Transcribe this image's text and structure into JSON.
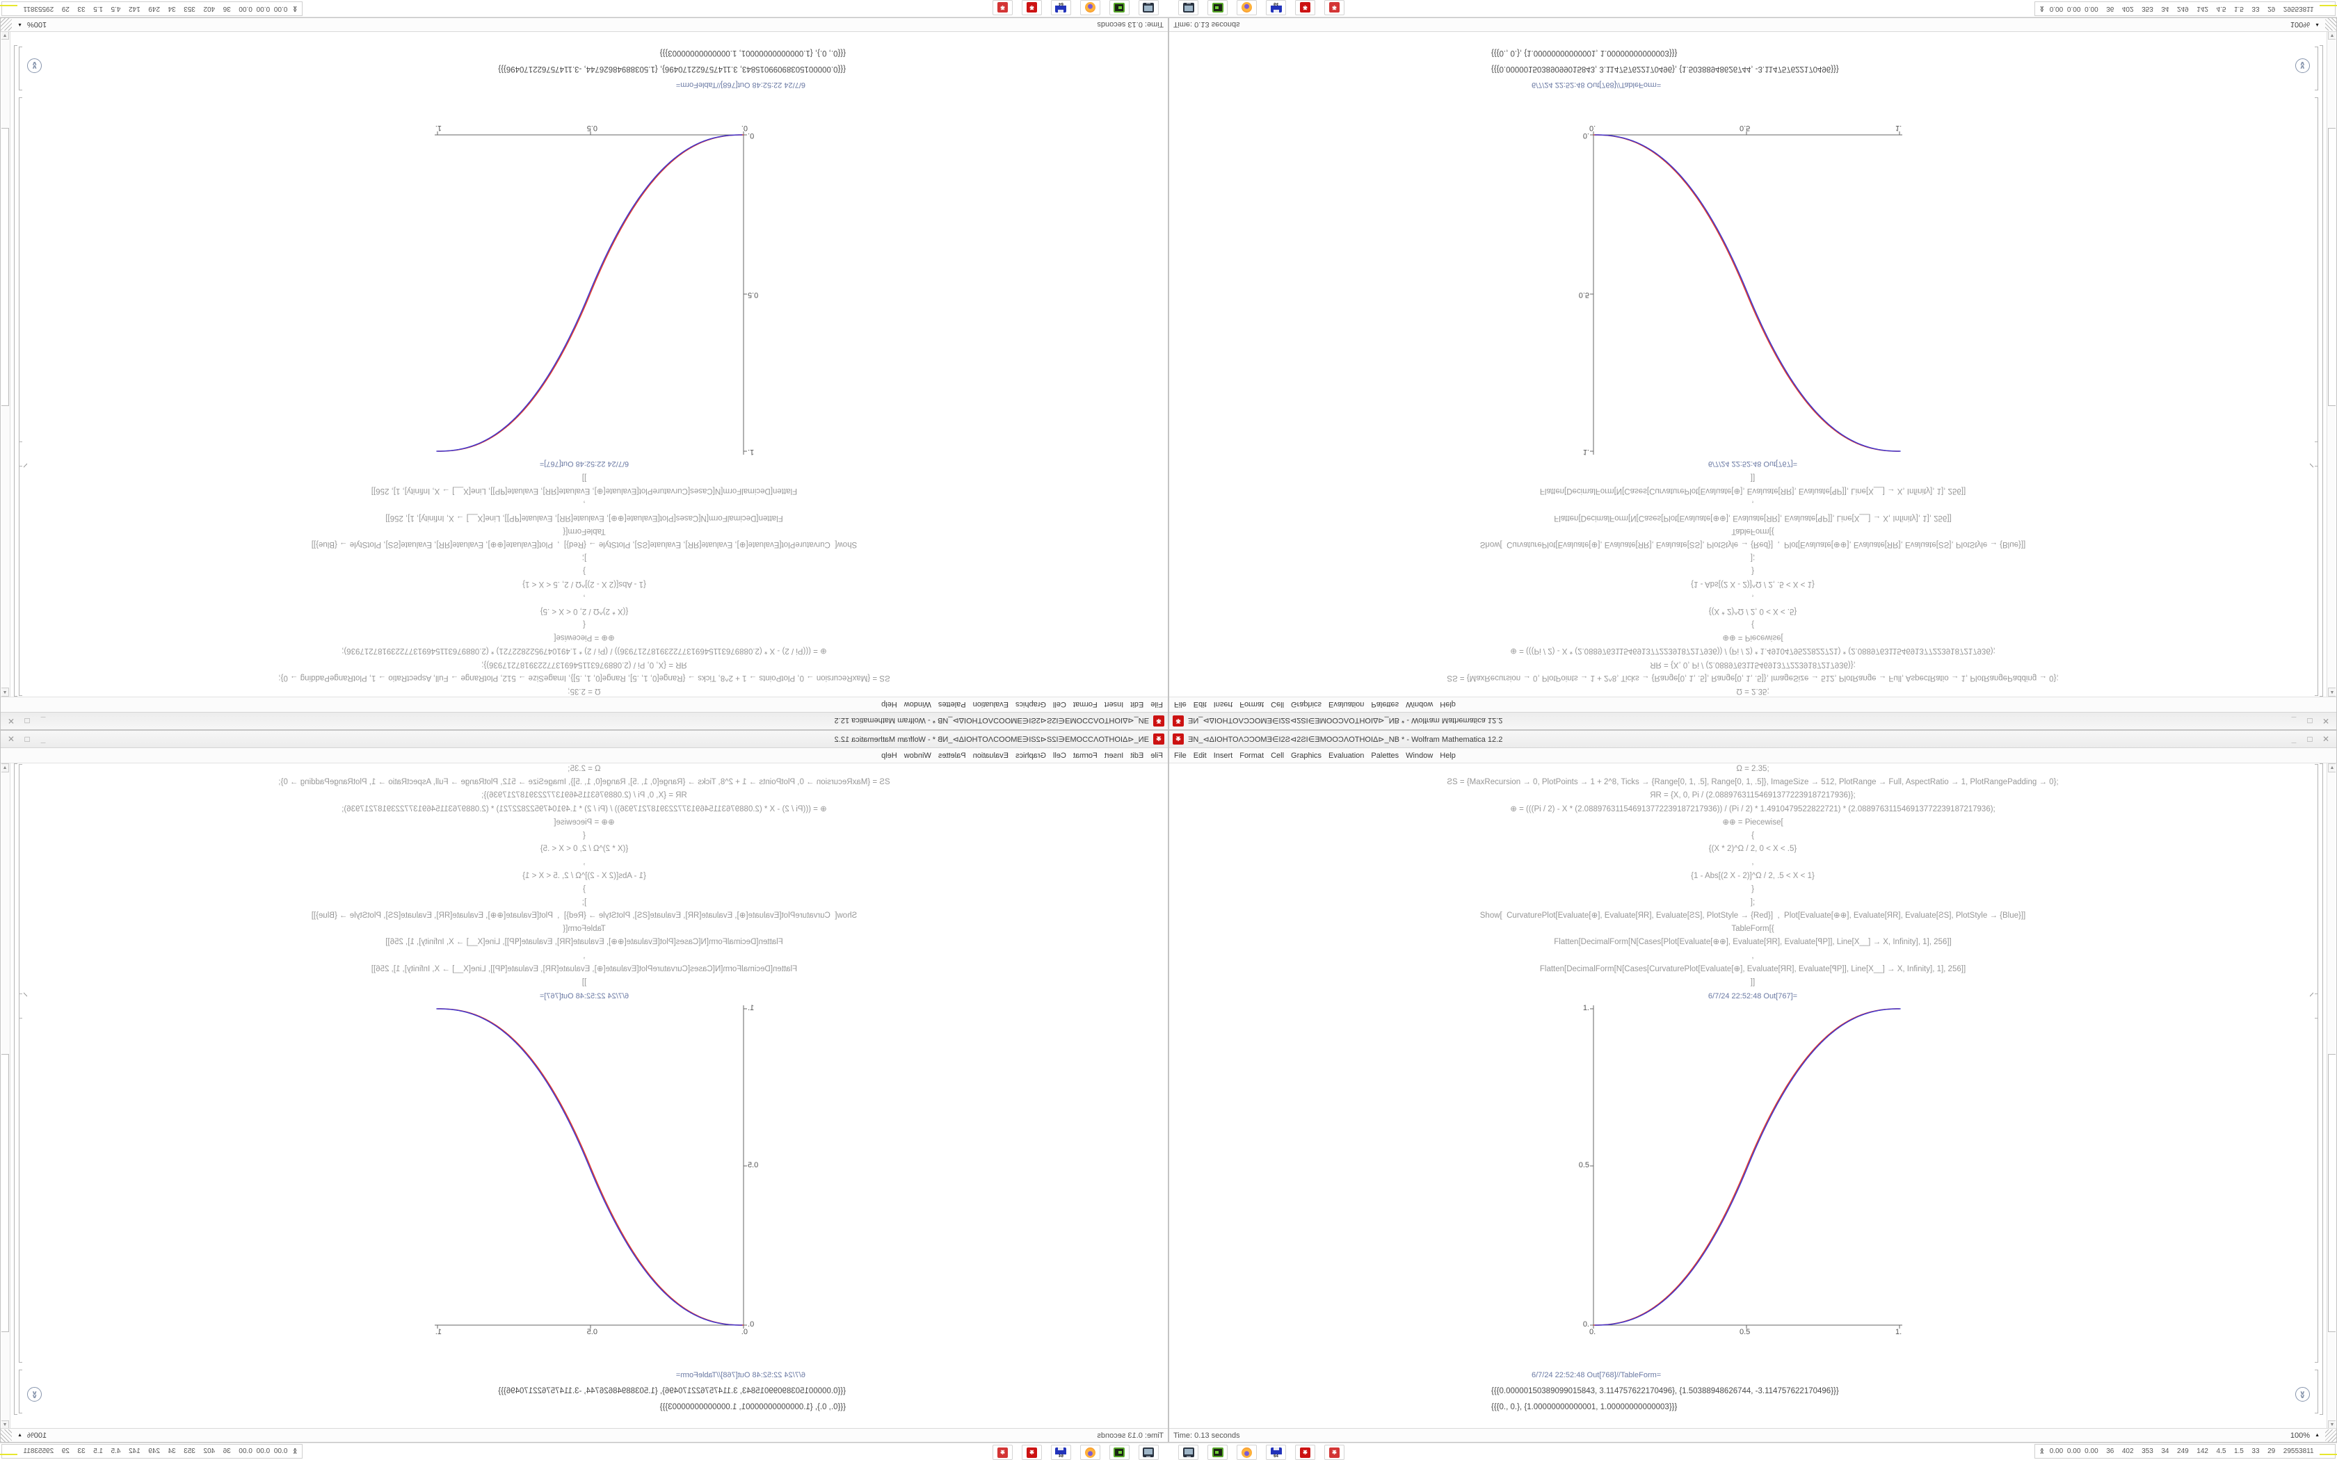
{
  "window": {
    "title": "ƎN_⊲ΔIOHTOΛƆƆOMƎ∈I2Ƨ⊲2ƧI∈ƎMOOƆΛOTHOIΔ⊳_NB * - Wolfram Mathematica 12.2",
    "app_icon": "mathematica-spikey-red",
    "controls": {
      "minimize": "_",
      "maximize": "□",
      "close": "✕"
    },
    "menu": [
      "File",
      "Edit",
      "Insert",
      "Format",
      "Cell",
      "Graphics",
      "Evaluation",
      "Palettes",
      "Window",
      "Help"
    ],
    "status": {
      "time_label": "Time: 0.13 seconds",
      "magnification": "100%",
      "magnification_arrow": "▲"
    }
  },
  "notebook": {
    "input_lines": [
      "Ω = 2.35;",
      "ƧS = {MaxRecursion → 0, PlotPoints → 1 + 2^8, Ticks → {Range[0, 1, .5], Range[0, 1, .5]}, ImageSize → 512, PlotRange → Full, AspectRatio → 1, PlotRangePadding → 0};",
      "ЯR = {X, 0, Pi / (2.088976311546913772239187217936)};",
      "⊕ = (((Pi / 2) - X * (2.088976311546913772239187217936)) / (Pi / 2) * 1.4910479522822721) * (2.088976311546913772239187217936);",
      "⊕⊕ = Piecewise[",
      "{",
      "{(X * 2)^Ω / 2, 0 < X < .5}",
      ",",
      "{1 - Abs[(2 X - 2)]^Ω / 2, .5 < X < 1}",
      "}",
      "];",
      "Show[  CurvaturePlot[Evaluate[⊕], Evaluate[ЯR], Evaluate[ƧS], PlotStyle → {Red}]  ,  Plot[Evaluate[⊕⊕], Evaluate[ЯR], Evaluate[ƧS], PlotStyle → {Blue}]]",
      "TableForm[{",
      "Flatten[DecimalForm[N[Cases[Plot[Evaluate[⊕⊕], Evaluate[ЯR], Evaluate[ꟼP]], Line[X__] → X, Infinity], 1], 256]]",
      ",",
      "Flatten[DecimalForm[N[Cases[CurvaturePlot[Evaluate[⊕], Evaluate[ЯR], Evaluate[ꟼP]], Line[X__] → X, Infinity], 1], 256]]",
      "]]"
    ],
    "out_label_1": "6/7/24 22:52:48 Out[767]=",
    "out_label_2": "6/7/24 22:52:48 Out[768]//TableForm=",
    "table_rows": [
      "{{{0.00000150389099015843, 3.114757622170496}, {1.50388948626744, -3.114757622170496}}}",
      "{{{0., 0.}, {1.00000000000001, 1.00000000000003}}}"
    ]
  },
  "chart_data": {
    "type": "line",
    "title": "",
    "xlabel": "",
    "ylabel": "",
    "xlim": [
      0,
      1
    ],
    "ylim": [
      0,
      1
    ],
    "x_ticks": [
      "0.",
      "0.5",
      "1."
    ],
    "y_ticks": [
      "0.",
      "0.5",
      "1."
    ],
    "grid": false,
    "legend": "none",
    "function": "y = (2x)^2.35 / 2 for 0<x<0.5 ; y = 1 - |2x-2|^2.35 / 2 for 0.5<x<1",
    "omega": 2.35,
    "series": [
      {
        "name": "CurvaturePlot ⊕ (Red)",
        "color": "#e0392b",
        "x_offset": 0
      },
      {
        "name": "Plot ⊕⊕ (Blue)",
        "color": "#4136cd",
        "x_offset": 1.6
      }
    ],
    "key_points": [
      [
        0,
        0
      ],
      [
        0.5,
        0.5
      ],
      [
        1,
        1
      ]
    ]
  },
  "taskbar": {
    "launcher_icons": [
      {
        "name": "monitor-icon"
      },
      {
        "name": "terminal-green-icon"
      },
      {
        "name": "firefox-icon"
      },
      {
        "name": "floppy-64-icon",
        "label": "64"
      },
      {
        "name": "spikey-icon"
      },
      {
        "name": "spikey2-icon"
      }
    ],
    "tray": {
      "expander_glyph": "∧",
      "numbers": "0.00 0.00 0.00  36  402  353  34  249  142  4.5  1.5  33  29  29553811"
    }
  },
  "colors": {
    "red_curve": "#e0392b",
    "blue_curve": "#4136cd",
    "out_label": "#6a79a3",
    "input_text": "#979797",
    "output_text": "#4b4b4b",
    "axis": "#666666",
    "app_red": "#cc1212",
    "tray_yellow": "#e6e62e",
    "tray_brown": "#8a571e",
    "tray_blue": "#2d5aa0",
    "tray_green": "#35b435",
    "tray_purple": "#8b2fb0"
  },
  "composition": {
    "note": "2x2 mirror tiling of one 1680x1050 screenshot",
    "bottom_right": "identity",
    "bottom_left": "mirror-horizontal",
    "top_right": "mirror-vertical",
    "top_left": "rotate-180"
  }
}
